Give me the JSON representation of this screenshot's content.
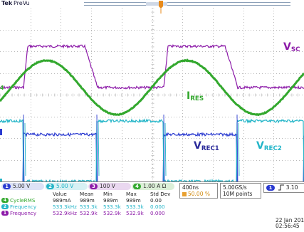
{
  "header": {
    "brand": "Tek",
    "state": "PreVu"
  },
  "waveform_labels": {
    "vsc_main": "V",
    "vsc_sub": "SC",
    "ires_main": "I",
    "ires_sub": "RES",
    "vrec1_main": "V",
    "vrec1_sub": "REC1",
    "vrec2_main": "V",
    "vrec2_sub": "REC2"
  },
  "channels": [
    {
      "num": "1",
      "scale": "5.00 V",
      "color": "#2a3ad0"
    },
    {
      "num": "2",
      "scale": "5.00 V",
      "color": "#23b5c8"
    },
    {
      "num": "3",
      "scale": "100 V",
      "color": "#8c1aa8"
    },
    {
      "num": "4",
      "scale": "1.00 A",
      "suffix": "Ω",
      "color": "#33a82e"
    }
  ],
  "timebase": {
    "scale": "400ns",
    "position": "50.00 %"
  },
  "acquisition": {
    "rate": "5.00GS/s",
    "points": "10M points"
  },
  "trigger": {
    "channel": "1",
    "level": "3.10"
  },
  "datetime": {
    "date": "22 Jan  201",
    "time": "02:56:45"
  },
  "measurements": {
    "headers": [
      "Value",
      "Mean",
      "Min",
      "Max",
      "Std Dev"
    ],
    "rows": [
      {
        "badge": "4",
        "name": "CycleRMS",
        "color": "#33a82e",
        "value": "989mA",
        "mean": "989m",
        "min": "989m",
        "max": "989m",
        "std": "0.00"
      },
      {
        "badge": "2",
        "name": "Frequency",
        "color": "#23b5c8",
        "value": "533.3kHz",
        "mean": "533.3k",
        "min": "533.3k",
        "max": "533.3k",
        "std": "0.000"
      },
      {
        "badge": "1",
        "name": "Frequency",
        "color": "#8c1aa8",
        "value": "532.9kHz",
        "mean": "532.9k",
        "min": "532.9k",
        "max": "532.9k",
        "std": "0.000"
      }
    ]
  },
  "colors": {
    "ch1": "#2a3ad0",
    "ch2": "#23b5c8",
    "ch3": "#8c1aa8",
    "ch4": "#33a82e",
    "grid": "#b9b9b9",
    "label_vsc": "#8c1aa8",
    "label_ires": "#33a82e",
    "label_vrec1": "#2a2a9a",
    "label_vrec2": "#23b5c8"
  }
}
